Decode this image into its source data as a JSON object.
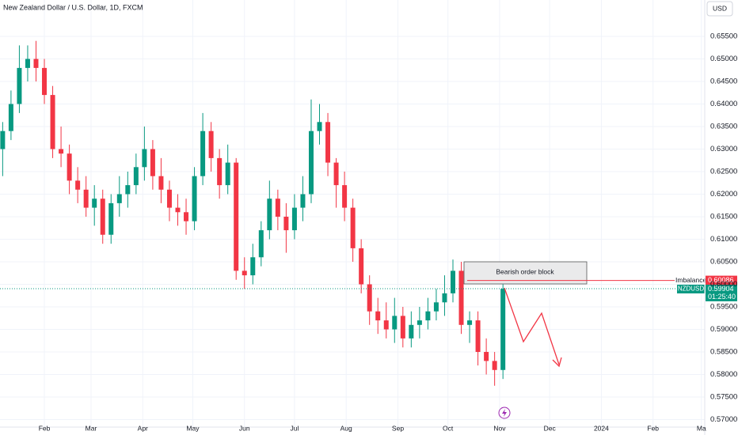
{
  "chart_data": {
    "type": "candlestick",
    "title": "New Zealand Dollar / U.S. Dollar, 1D, FXCM",
    "currency": "USD",
    "symbol": "NZDUSD",
    "up_color": "#089981",
    "down_color": "#f23645",
    "grid": true,
    "x": [
      6,
      11,
      16,
      21,
      26,
      31,
      36,
      41,
      46,
      51,
      56,
      61,
      66,
      71,
      76,
      81,
      86,
      91,
      96,
      101,
      106,
      111,
      116,
      121,
      126,
      131,
      136,
      141,
      146,
      151,
      156,
      161,
      166,
      171,
      176,
      181,
      186,
      191,
      196,
      201,
      206,
      211,
      216,
      221,
      226,
      231,
      236,
      241,
      246,
      251,
      256,
      261,
      266,
      271,
      276,
      281,
      286,
      291,
      296,
      301,
      306
    ],
    "open": [
      0.63,
      0.634,
      0.64,
      0.648,
      0.65,
      0.648,
      0.642,
      0.63,
      0.629,
      0.623,
      0.621,
      0.617,
      0.619,
      0.611,
      0.618,
      0.62,
      0.622,
      0.626,
      0.63,
      0.624,
      0.621,
      0.617,
      0.616,
      0.614,
      0.624,
      0.634,
      0.628,
      0.622,
      0.627,
      0.603,
      0.602,
      0.606,
      0.612,
      0.619,
      0.615,
      0.612,
      0.617,
      0.62,
      0.634,
      0.636,
      0.627,
      0.622,
      0.617,
      0.608,
      0.6,
      0.594,
      0.592,
      0.59,
      0.593,
      0.588,
      0.591,
      0.592,
      0.594,
      0.596,
      0.598,
      0.603,
      0.591,
      0.592,
      0.585,
      0.583,
      0.581
    ],
    "high": [
      0.636,
      0.643,
      0.653,
      0.653,
      0.654,
      0.65,
      0.644,
      0.635,
      0.631,
      0.626,
      0.624,
      0.622,
      0.621,
      0.62,
      0.624,
      0.625,
      0.629,
      0.635,
      0.632,
      0.628,
      0.623,
      0.62,
      0.619,
      0.626,
      0.638,
      0.636,
      0.63,
      0.631,
      0.628,
      0.606,
      0.609,
      0.614,
      0.623,
      0.621,
      0.618,
      0.62,
      0.624,
      0.641,
      0.64,
      0.638,
      0.628,
      0.625,
      0.619,
      0.61,
      0.602,
      0.597,
      0.596,
      0.597,
      0.595,
      0.594,
      0.595,
      0.597,
      0.599,
      0.602,
      0.6055,
      0.605,
      0.594,
      0.594,
      0.588,
      0.585,
      0.6
    ],
    "low": [
      0.624,
      0.632,
      0.638,
      0.645,
      0.645,
      0.64,
      0.628,
      0.626,
      0.62,
      0.618,
      0.615,
      0.613,
      0.609,
      0.609,
      0.615,
      0.617,
      0.62,
      0.623,
      0.621,
      0.618,
      0.614,
      0.613,
      0.611,
      0.612,
      0.622,
      0.625,
      0.619,
      0.62,
      0.601,
      0.599,
      0.6,
      0.604,
      0.61,
      0.612,
      0.607,
      0.61,
      0.614,
      0.618,
      0.631,
      0.624,
      0.617,
      0.614,
      0.605,
      0.598,
      0.591,
      0.589,
      0.588,
      0.587,
      0.586,
      0.586,
      0.588,
      0.59,
      0.592,
      0.593,
      0.596,
      0.589,
      0.587,
      0.582,
      0.58,
      0.5775,
      0.579
    ],
    "close": [
      0.634,
      0.64,
      0.648,
      0.65,
      0.648,
      0.642,
      0.63,
      0.629,
      0.623,
      0.621,
      0.617,
      0.619,
      0.611,
      0.618,
      0.62,
      0.622,
      0.626,
      0.63,
      0.624,
      0.621,
      0.617,
      0.616,
      0.614,
      0.624,
      0.634,
      0.628,
      0.622,
      0.627,
      0.603,
      0.602,
      0.606,
      0.612,
      0.619,
      0.615,
      0.612,
      0.617,
      0.62,
      0.634,
      0.636,
      0.627,
      0.622,
      0.617,
      0.608,
      0.6,
      0.594,
      0.592,
      0.59,
      0.593,
      0.588,
      0.591,
      0.592,
      0.594,
      0.596,
      0.598,
      0.603,
      0.591,
      0.592,
      0.585,
      0.583,
      0.581,
      0.599
    ],
    "xlim": [
      4.4,
      427
    ],
    "xticks": [
      {
        "value": 31,
        "label": "Feb"
      },
      {
        "value": 59,
        "label": "Mar"
      },
      {
        "value": 90,
        "label": "Apr"
      },
      {
        "value": 120,
        "label": "May"
      },
      {
        "value": 151,
        "label": "Jun"
      },
      {
        "value": 181,
        "label": "Jul"
      },
      {
        "value": 212,
        "label": "Aug"
      },
      {
        "value": 243,
        "label": "Sep"
      },
      {
        "value": 273,
        "label": "Oct"
      },
      {
        "value": 304,
        "label": "Nov"
      },
      {
        "value": 334,
        "label": "Dec"
      },
      {
        "value": 365,
        "label": "2024"
      },
      {
        "value": 396,
        "label": "Feb"
      },
      {
        "value": 425,
        "label": "Ma"
      }
    ],
    "ylim": [
      0.56833,
      0.66307
    ],
    "yticks": [
      {
        "value": 0.655,
        "label": "0.65500"
      },
      {
        "value": 0.65,
        "label": "0.65000"
      },
      {
        "value": 0.645,
        "label": "0.64500"
      },
      {
        "value": 0.64,
        "label": "0.64000"
      },
      {
        "value": 0.635,
        "label": "0.63500"
      },
      {
        "value": 0.63,
        "label": "0.63000"
      },
      {
        "value": 0.625,
        "label": "0.62500"
      },
      {
        "value": 0.62,
        "label": "0.62000"
      },
      {
        "value": 0.615,
        "label": "0.61500"
      },
      {
        "value": 0.61,
        "label": "0.61000"
      },
      {
        "value": 0.605,
        "label": "0.60500"
      },
      {
        "value": 0.6,
        "label": "0.60000"
      },
      {
        "value": 0.595,
        "label": "0.59500"
      },
      {
        "value": 0.59,
        "label": "0.59000"
      },
      {
        "value": 0.585,
        "label": "0.58500"
      },
      {
        "value": 0.58,
        "label": "0.58000"
      },
      {
        "value": 0.575,
        "label": "0.57500"
      },
      {
        "value": 0.57,
        "label": "0.57000"
      }
    ],
    "last_price": {
      "value": 0.59904,
      "label": "0.59904"
    },
    "countdown": "01:25:40",
    "annotations": {
      "order_block": "Bearish order block",
      "imbalance_label": "Imbalance",
      "imbalance_price": {
        "value": 0.60086,
        "label": "0.60086"
      }
    }
  }
}
